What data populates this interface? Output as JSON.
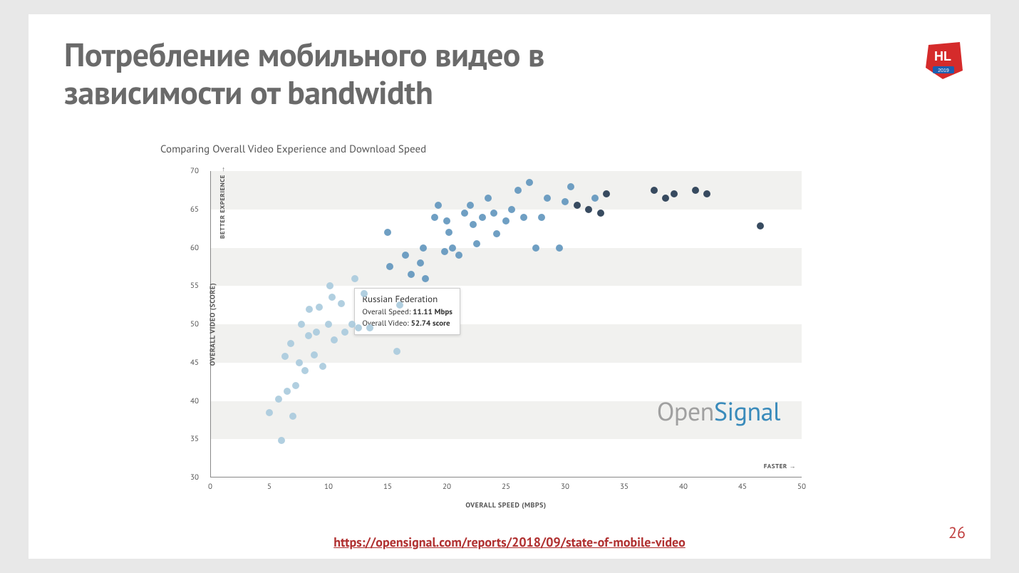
{
  "slide": {
    "title": "Потребление мобильного видео в зависимости от bandwidth",
    "page_number": "26",
    "source_url_text": "https://opensignal.com/reports/2018/09/state-of-mobile-video"
  },
  "logo": {
    "text": "HL",
    "year": "2019",
    "fill": "#d52b2b",
    "accent": "#1d5fb0"
  },
  "chart": {
    "type": "scatter",
    "title": "Comparing Overall Video Experience and Download Speed",
    "xlabel": "OVERALL SPEED (MBPS)",
    "ylabel": "OVERALL VIDEO (SCORE)",
    "better_label": "BETTER EXPERIENCE →",
    "faster_label": "FASTER →",
    "xlim": [
      0,
      50
    ],
    "ylim": [
      30,
      70
    ],
    "xticks": [
      0,
      5,
      10,
      15,
      20,
      25,
      30,
      35,
      40,
      45,
      50
    ],
    "yticks": [
      30,
      35,
      40,
      45,
      50,
      55,
      60,
      65,
      70
    ],
    "band_color": "#f1f1ef",
    "background_color": "#ffffff",
    "tick_fontsize": 11,
    "label_fontsize": 10,
    "marker_size": 10,
    "colors": {
      "light": "#a9cadd",
      "mid": "#5f95bd",
      "dark": "#22374f"
    },
    "watermark": {
      "part1": "Open",
      "part2": "Signal",
      "color1": "#a0a0a0",
      "color2": "#3a8bbb"
    },
    "tooltip": {
      "country": "Russian Federation",
      "speed_label": "Overall Speed:",
      "speed_value": "11.11 Mbps",
      "video_label": "Overall Video:",
      "video_value": "52.74 score",
      "anchor_x": 11.11,
      "anchor_y": 52.74
    },
    "points": [
      {
        "x": 5.0,
        "y": 38.5,
        "c": "light"
      },
      {
        "x": 5.8,
        "y": 40.2,
        "c": "light"
      },
      {
        "x": 6.0,
        "y": 34.8,
        "c": "light"
      },
      {
        "x": 6.3,
        "y": 45.8,
        "c": "light"
      },
      {
        "x": 6.5,
        "y": 41.3,
        "c": "light"
      },
      {
        "x": 6.8,
        "y": 47.5,
        "c": "light"
      },
      {
        "x": 7.0,
        "y": 38.0,
        "c": "light"
      },
      {
        "x": 7.2,
        "y": 42.0,
        "c": "light"
      },
      {
        "x": 7.5,
        "y": 45.0,
        "c": "light"
      },
      {
        "x": 7.7,
        "y": 50.0,
        "c": "light"
      },
      {
        "x": 8.0,
        "y": 44.0,
        "c": "light"
      },
      {
        "x": 8.3,
        "y": 48.5,
        "c": "light"
      },
      {
        "x": 8.4,
        "y": 52.0,
        "c": "light"
      },
      {
        "x": 8.8,
        "y": 46.0,
        "c": "light"
      },
      {
        "x": 9.0,
        "y": 49.0,
        "c": "light"
      },
      {
        "x": 9.2,
        "y": 52.2,
        "c": "light"
      },
      {
        "x": 9.5,
        "y": 44.5,
        "c": "light"
      },
      {
        "x": 10.0,
        "y": 50.0,
        "c": "light"
      },
      {
        "x": 10.1,
        "y": 55.0,
        "c": "light"
      },
      {
        "x": 10.3,
        "y": 53.5,
        "c": "light"
      },
      {
        "x": 10.5,
        "y": 48.0,
        "c": "light"
      },
      {
        "x": 11.11,
        "y": 52.74,
        "c": "light"
      },
      {
        "x": 11.4,
        "y": 49.0,
        "c": "light"
      },
      {
        "x": 12.0,
        "y": 50.0,
        "c": "light"
      },
      {
        "x": 12.2,
        "y": 56.0,
        "c": "light"
      },
      {
        "x": 12.5,
        "y": 49.5,
        "c": "light"
      },
      {
        "x": 13.0,
        "y": 54.0,
        "c": "light"
      },
      {
        "x": 13.5,
        "y": 49.5,
        "c": "light"
      },
      {
        "x": 15.0,
        "y": 62.0,
        "c": "mid"
      },
      {
        "x": 15.2,
        "y": 57.5,
        "c": "mid"
      },
      {
        "x": 15.8,
        "y": 46.5,
        "c": "light"
      },
      {
        "x": 16.0,
        "y": 52.5,
        "c": "light"
      },
      {
        "x": 16.5,
        "y": 59.0,
        "c": "mid"
      },
      {
        "x": 17.0,
        "y": 56.5,
        "c": "mid"
      },
      {
        "x": 17.8,
        "y": 58.0,
        "c": "mid"
      },
      {
        "x": 18.0,
        "y": 60.0,
        "c": "mid"
      },
      {
        "x": 18.2,
        "y": 56.0,
        "c": "mid"
      },
      {
        "x": 19.0,
        "y": 64.0,
        "c": "mid"
      },
      {
        "x": 19.3,
        "y": 65.5,
        "c": "mid"
      },
      {
        "x": 19.8,
        "y": 59.5,
        "c": "mid"
      },
      {
        "x": 20.0,
        "y": 63.5,
        "c": "mid"
      },
      {
        "x": 20.2,
        "y": 62.0,
        "c": "mid"
      },
      {
        "x": 20.5,
        "y": 60.0,
        "c": "mid"
      },
      {
        "x": 21.0,
        "y": 59.0,
        "c": "mid"
      },
      {
        "x": 21.5,
        "y": 64.5,
        "c": "mid"
      },
      {
        "x": 22.0,
        "y": 65.5,
        "c": "mid"
      },
      {
        "x": 22.2,
        "y": 63.0,
        "c": "mid"
      },
      {
        "x": 22.5,
        "y": 60.5,
        "c": "mid"
      },
      {
        "x": 23.0,
        "y": 64.0,
        "c": "mid"
      },
      {
        "x": 23.5,
        "y": 66.5,
        "c": "mid"
      },
      {
        "x": 24.0,
        "y": 64.5,
        "c": "mid"
      },
      {
        "x": 24.2,
        "y": 61.8,
        "c": "mid"
      },
      {
        "x": 25.0,
        "y": 63.5,
        "c": "mid"
      },
      {
        "x": 25.5,
        "y": 65.0,
        "c": "mid"
      },
      {
        "x": 26.0,
        "y": 67.5,
        "c": "mid"
      },
      {
        "x": 26.5,
        "y": 64.0,
        "c": "mid"
      },
      {
        "x": 27.0,
        "y": 68.5,
        "c": "mid"
      },
      {
        "x": 27.5,
        "y": 60.0,
        "c": "mid"
      },
      {
        "x": 28.0,
        "y": 64.0,
        "c": "mid"
      },
      {
        "x": 28.5,
        "y": 66.5,
        "c": "mid"
      },
      {
        "x": 29.5,
        "y": 60.0,
        "c": "mid"
      },
      {
        "x": 30.0,
        "y": 66.0,
        "c": "mid"
      },
      {
        "x": 30.5,
        "y": 68.0,
        "c": "mid"
      },
      {
        "x": 31.0,
        "y": 65.5,
        "c": "dark"
      },
      {
        "x": 32.0,
        "y": 65.0,
        "c": "dark"
      },
      {
        "x": 32.5,
        "y": 66.5,
        "c": "mid"
      },
      {
        "x": 33.0,
        "y": 64.5,
        "c": "dark"
      },
      {
        "x": 33.5,
        "y": 67.0,
        "c": "dark"
      },
      {
        "x": 37.5,
        "y": 67.5,
        "c": "dark"
      },
      {
        "x": 38.5,
        "y": 66.5,
        "c": "dark"
      },
      {
        "x": 39.2,
        "y": 67.0,
        "c": "dark"
      },
      {
        "x": 41.0,
        "y": 67.5,
        "c": "dark"
      },
      {
        "x": 42.0,
        "y": 67.0,
        "c": "dark"
      },
      {
        "x": 46.5,
        "y": 62.8,
        "c": "dark"
      }
    ]
  }
}
